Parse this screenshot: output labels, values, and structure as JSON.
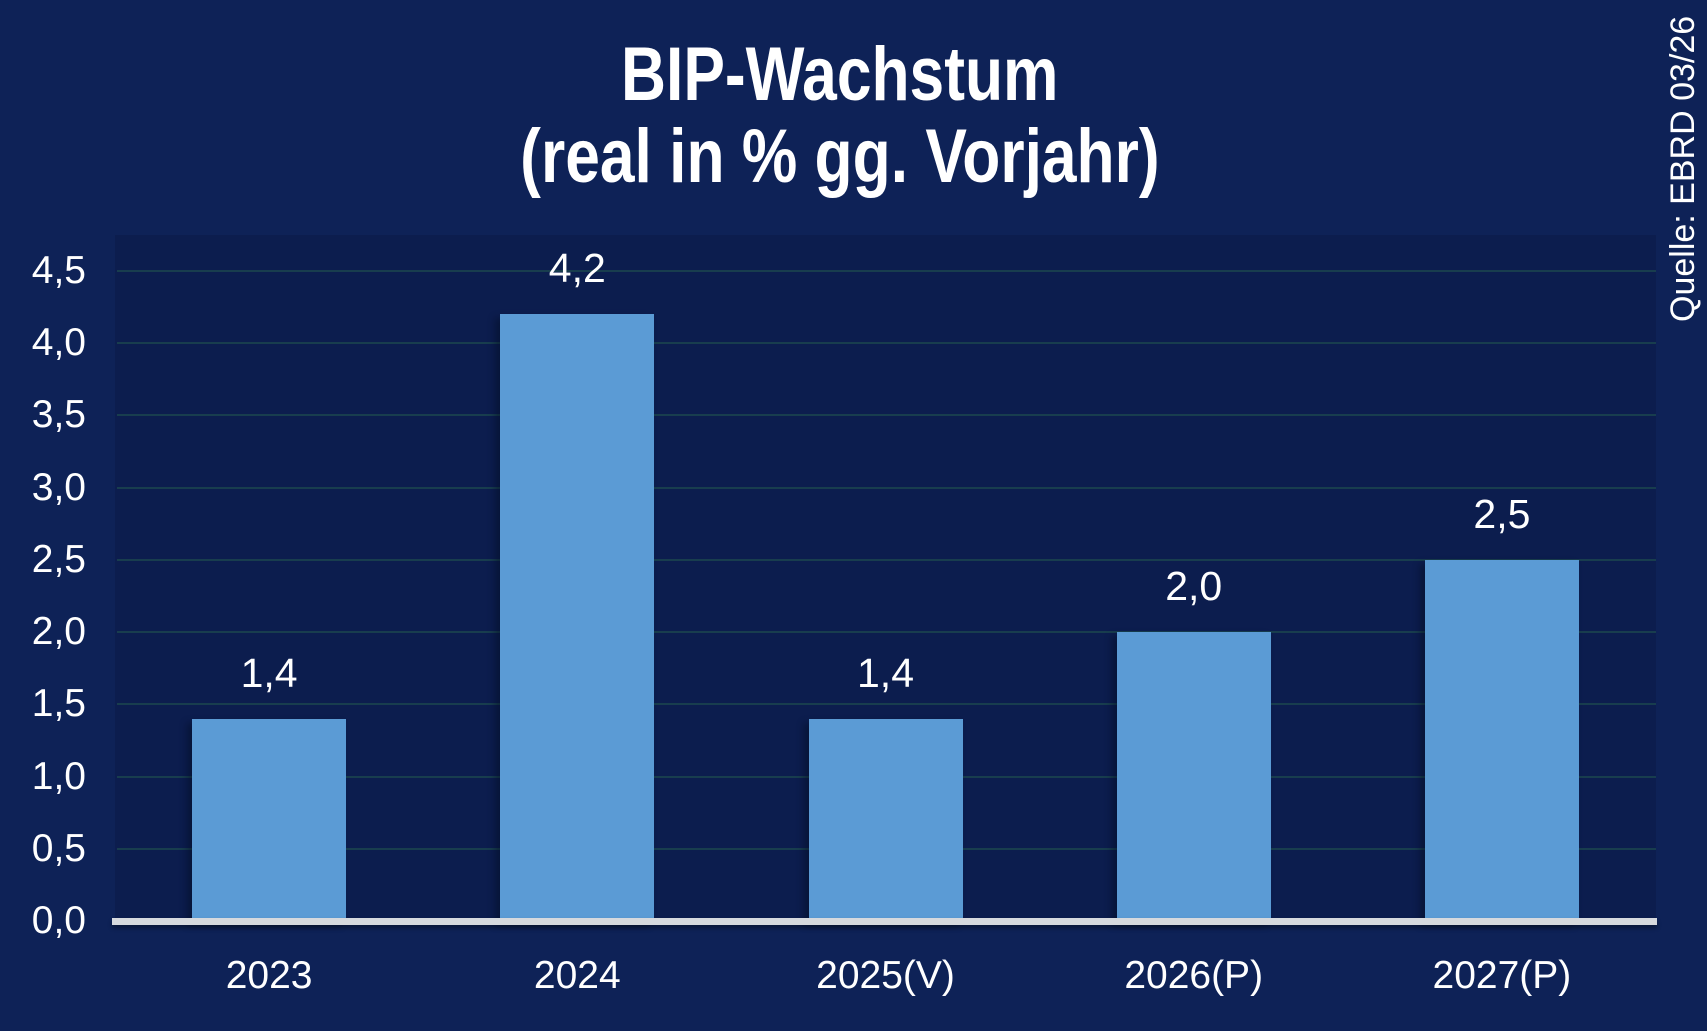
{
  "source_note": "Quelle: EBRD 03/26",
  "chart_data": {
    "type": "bar",
    "title": "BIP-Wachstum",
    "subtitle": "(real in % gg. Vorjahr)",
    "categories": [
      "2023",
      "2024",
      "2025(V)",
      "2026(P)",
      "2027(P)"
    ],
    "values": [
      1.4,
      4.2,
      1.4,
      2.0,
      2.5
    ],
    "value_labels": [
      "1,4",
      "4,2",
      "1,4",
      "2,0",
      "2,5"
    ],
    "ylim": [
      0,
      4.5
    ],
    "ytick_step": 0.5,
    "ytick_labels": [
      "0,0",
      "0,5",
      "1,0",
      "1,5",
      "2,0",
      "2,5",
      "3,0",
      "3,5",
      "4,0",
      "4,5"
    ],
    "grid": true,
    "legend_position": "none",
    "decimal_separator": ",",
    "colors": {
      "bar": "#5B9BD5",
      "background": "#0E2257",
      "plot_background_overlay": "rgba(0,0,20,0.13)",
      "gridline": "#183D4E",
      "axis_line": "#D6D9DE",
      "text": "#FFFFFF"
    }
  }
}
